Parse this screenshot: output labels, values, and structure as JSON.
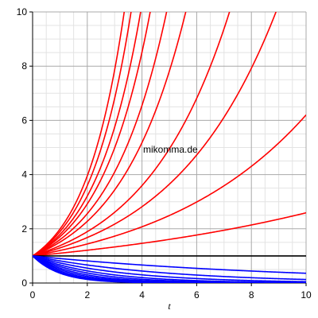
{
  "chart_data": {
    "type": "line",
    "xlabel": "t",
    "ylabel": "",
    "xlim": [
      0,
      10
    ],
    "ylim": [
      0,
      10
    ],
    "x_ticks": [
      0,
      2,
      4,
      6,
      8,
      10
    ],
    "y_ticks": [
      0,
      2,
      4,
      6,
      8,
      10
    ],
    "grid": true,
    "annotation": "mikomma.de",
    "series": [
      {
        "group": "growth",
        "color": "#ff0000",
        "points": [
          [
            0,
            1
          ],
          [
            4,
            1.46
          ],
          [
            10,
            2.59
          ]
        ]
      },
      {
        "group": "growth",
        "color": "#ff0000",
        "points": [
          [
            0,
            1
          ],
          [
            5,
            2.49
          ],
          [
            10,
            6.2
          ]
        ]
      },
      {
        "group": "growth",
        "color": "#ff0000",
        "points": [
          [
            0,
            1
          ],
          [
            4.3,
            3.52
          ],
          [
            8.9,
            10
          ]
        ]
      },
      {
        "group": "growth",
        "color": "#ff0000",
        "points": [
          [
            0,
            1
          ],
          [
            3,
            3.31
          ],
          [
            7.2,
            10
          ]
        ]
      },
      {
        "group": "growth",
        "color": "#ff0000",
        "points": [
          [
            0,
            1
          ],
          [
            3,
            4.43
          ],
          [
            5.6,
            10
          ]
        ]
      },
      {
        "group": "growth",
        "color": "#ff0000",
        "points": [
          [
            0,
            1
          ],
          [
            2.5,
            4.41
          ],
          [
            4.9,
            10
          ]
        ]
      },
      {
        "group": "growth",
        "color": "#ff0000",
        "points": [
          [
            0,
            1
          ],
          [
            2,
            3.95
          ],
          [
            4.3,
            10
          ]
        ]
      },
      {
        "group": "growth",
        "color": "#ff0000",
        "points": [
          [
            0,
            1
          ],
          [
            2,
            4.6
          ],
          [
            3.95,
            10
          ]
        ]
      },
      {
        "group": "growth",
        "color": "#ff0000",
        "points": [
          [
            0,
            1
          ],
          [
            1.7,
            4.14
          ],
          [
            3.6,
            10
          ]
        ]
      },
      {
        "group": "growth",
        "color": "#ff0000",
        "points": [
          [
            0,
            1
          ],
          [
            1.6,
            4.35
          ],
          [
            3.35,
            10
          ]
        ]
      },
      {
        "group": "neutral",
        "color": "#000000",
        "points": [
          [
            0,
            1
          ],
          [
            10,
            1
          ]
        ]
      },
      {
        "group": "decay",
        "color": "#0000ff",
        "points": [
          [
            0,
            1
          ],
          [
            10,
            0.36
          ]
        ]
      },
      {
        "group": "decay",
        "color": "#0000ff",
        "points": [
          [
            0,
            1
          ],
          [
            10,
            0.13
          ]
        ]
      },
      {
        "group": "decay",
        "color": "#0000ff",
        "points": [
          [
            0,
            1
          ],
          [
            10,
            0.05
          ]
        ]
      },
      {
        "group": "decay",
        "color": "#0000ff",
        "points": [
          [
            0,
            1
          ],
          [
            10,
            0.018
          ]
        ]
      },
      {
        "group": "decay",
        "color": "#0000ff",
        "points": [
          [
            0,
            1
          ],
          [
            10,
            0.007
          ]
        ]
      },
      {
        "group": "decay",
        "color": "#0000ff",
        "points": [
          [
            0,
            1
          ],
          [
            10,
            0.0025
          ]
        ]
      },
      {
        "group": "decay",
        "color": "#0000ff",
        "points": [
          [
            0,
            1
          ],
          [
            10,
            0.0009
          ]
        ]
      },
      {
        "group": "decay",
        "color": "#0000ff",
        "points": [
          [
            0,
            1
          ],
          [
            10,
            0.0003
          ]
        ]
      },
      {
        "group": "decay",
        "color": "#0000ff",
        "points": [
          [
            0,
            1
          ],
          [
            10,
            0.0001
          ]
        ]
      },
      {
        "group": "decay",
        "color": "#0000ff",
        "points": [
          [
            0,
            1
          ],
          [
            10,
            4e-05
          ]
        ]
      }
    ]
  }
}
